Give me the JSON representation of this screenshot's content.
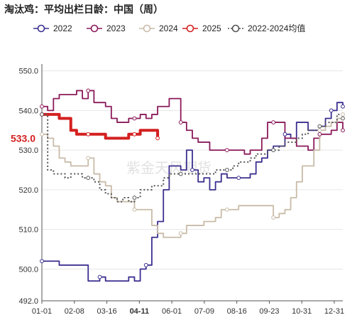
{
  "chart_data": {
    "type": "line",
    "title": "淘汰鸡：平均出栏日龄：中国（周）",
    "xlabel": "",
    "ylabel": "",
    "ylim": [
      492,
      551
    ],
    "yticks": [
      492.0,
      500.0,
      510.0,
      520.0,
      530.0,
      540.0,
      550.0
    ],
    "xticks": [
      "01-01",
      "02-08",
      "03-16",
      "04-11",
      "06-01",
      "07-09",
      "08-16",
      "09-23",
      "10-31",
      "12-31"
    ],
    "highlight_xtick": "04-11",
    "last_value_label": "533.0",
    "watermark": "紫金天风期货",
    "legend_position": "top",
    "grid": "horizontal",
    "series": [
      {
        "name": "2022",
        "color": "#3b2f8f",
        "style": "solid",
        "values": [
          [
            1,
            502
          ],
          [
            3,
            502
          ],
          [
            4,
            501
          ],
          [
            6,
            501
          ],
          [
            7,
            501
          ],
          [
            8,
            501
          ],
          [
            9,
            497
          ],
          [
            10,
            497
          ],
          [
            11,
            498
          ],
          [
            12,
            497
          ],
          [
            13,
            497
          ],
          [
            14,
            497
          ],
          [
            15,
            497
          ],
          [
            16,
            498
          ],
          [
            17,
            497
          ],
          [
            18,
            500
          ],
          [
            19,
            501
          ],
          [
            20,
            508
          ],
          [
            21,
            512
          ],
          [
            22,
            520
          ],
          [
            23,
            526
          ],
          [
            24,
            526
          ],
          [
            25,
            525
          ],
          [
            26,
            530
          ],
          [
            27,
            525
          ],
          [
            28,
            522
          ],
          [
            29,
            523
          ],
          [
            30,
            520
          ],
          [
            31,
            522
          ],
          [
            32,
            524
          ],
          [
            33,
            523
          ],
          [
            34,
            523
          ],
          [
            35,
            523
          ],
          [
            36,
            523
          ],
          [
            37,
            524
          ],
          [
            38,
            527
          ],
          [
            39,
            528
          ],
          [
            40,
            530
          ],
          [
            41,
            531
          ],
          [
            42,
            531
          ],
          [
            43,
            534
          ],
          [
            44,
            533
          ],
          [
            45,
            537
          ],
          [
            46,
            537
          ],
          [
            47,
            535
          ],
          [
            48,
            535
          ],
          [
            49,
            536
          ],
          [
            50,
            538
          ],
          [
            51,
            540
          ],
          [
            52,
            542
          ],
          [
            53,
            541
          ]
        ]
      },
      {
        "name": "2023",
        "color": "#8b1a5a",
        "style": "solid",
        "values": [
          [
            1,
            541
          ],
          [
            2,
            540
          ],
          [
            3,
            543
          ],
          [
            4,
            544
          ],
          [
            5,
            544
          ],
          [
            6,
            544
          ],
          [
            7,
            545
          ],
          [
            8,
            543
          ],
          [
            9,
            545
          ],
          [
            10,
            542
          ],
          [
            11,
            542
          ],
          [
            12,
            541
          ],
          [
            13,
            538
          ],
          [
            14,
            537
          ],
          [
            15,
            537
          ],
          [
            16,
            538
          ],
          [
            17,
            538
          ],
          [
            18,
            539
          ],
          [
            19,
            538
          ],
          [
            20,
            539
          ],
          [
            21,
            541
          ],
          [
            22,
            541
          ],
          [
            23,
            543
          ],
          [
            24,
            543
          ],
          [
            25,
            537
          ],
          [
            26,
            535
          ],
          [
            27,
            533
          ],
          [
            28,
            532
          ],
          [
            29,
            532
          ],
          [
            30,
            530
          ],
          [
            31,
            530
          ],
          [
            32,
            530
          ],
          [
            33,
            530
          ],
          [
            34,
            530
          ],
          [
            35,
            530
          ],
          [
            36,
            529
          ],
          [
            37,
            530
          ],
          [
            38,
            530
          ],
          [
            39,
            533
          ],
          [
            40,
            537
          ],
          [
            41,
            537
          ],
          [
            42,
            537
          ],
          [
            43,
            533
          ],
          [
            44,
            533
          ],
          [
            45,
            531
          ],
          [
            46,
            531
          ],
          [
            47,
            530
          ],
          [
            48,
            533
          ],
          [
            49,
            534
          ],
          [
            50,
            534
          ],
          [
            51,
            535
          ],
          [
            52,
            537
          ],
          [
            53,
            535
          ]
        ]
      },
      {
        "name": "2024",
        "color": "#c9bba8",
        "style": "solid",
        "values": [
          [
            1,
            534
          ],
          [
            2,
            533
          ],
          [
            3,
            531
          ],
          [
            4,
            528
          ],
          [
            5,
            527
          ],
          [
            6,
            526
          ],
          [
            7,
            526
          ],
          [
            8,
            526
          ],
          [
            9,
            528
          ],
          [
            10,
            524
          ],
          [
            11,
            522
          ],
          [
            12,
            521
          ],
          [
            13,
            518
          ],
          [
            14,
            517
          ],
          [
            15,
            517
          ],
          [
            16,
            517
          ],
          [
            17,
            515
          ],
          [
            18,
            515
          ],
          [
            19,
            515
          ],
          [
            20,
            511
          ],
          [
            21,
            509
          ],
          [
            22,
            508
          ],
          [
            23,
            508
          ],
          [
            24,
            508
          ],
          [
            25,
            509
          ],
          [
            26,
            511
          ],
          [
            27,
            511
          ],
          [
            28,
            511
          ],
          [
            29,
            512
          ],
          [
            30,
            512
          ],
          [
            31,
            513
          ],
          [
            32,
            515
          ],
          [
            33,
            515
          ],
          [
            34,
            515
          ],
          [
            35,
            516
          ],
          [
            36,
            516
          ],
          [
            37,
            516
          ],
          [
            38,
            516
          ],
          [
            39,
            516
          ],
          [
            40,
            516
          ],
          [
            41,
            513
          ],
          [
            42,
            514
          ],
          [
            43,
            515
          ],
          [
            44,
            518
          ],
          [
            45,
            522
          ],
          [
            46,
            526
          ],
          [
            47,
            526
          ],
          [
            48,
            530
          ],
          [
            49,
            535
          ],
          [
            50,
            536
          ],
          [
            51,
            537
          ],
          [
            52,
            538
          ],
          [
            53,
            539
          ]
        ]
      },
      {
        "name": "2025",
        "color": "#d42020",
        "style": "solid",
        "values": [
          [
            1,
            539
          ],
          [
            2,
            539
          ],
          [
            3,
            539
          ],
          [
            4,
            538
          ],
          [
            5,
            538
          ],
          [
            6,
            535
          ],
          [
            7,
            534
          ],
          [
            8,
            534
          ],
          [
            9,
            534
          ],
          [
            10,
            534
          ],
          [
            11,
            534
          ],
          [
            12,
            533
          ],
          [
            13,
            533
          ],
          [
            14,
            533
          ],
          [
            15,
            533
          ],
          [
            16,
            534
          ],
          [
            17,
            534
          ],
          [
            18,
            535
          ],
          [
            19,
            535
          ],
          [
            20,
            535
          ],
          [
            21,
            533
          ]
        ]
      },
      {
        "name": "2022-2024均值",
        "color": "#555555",
        "style": "dotted",
        "values": [
          [
            1,
            539
          ],
          [
            2,
            525
          ],
          [
            3,
            524
          ],
          [
            4,
            524
          ],
          [
            5,
            523
          ],
          [
            6,
            524
          ],
          [
            7,
            524
          ],
          [
            8,
            523
          ],
          [
            9,
            523
          ],
          [
            10,
            522
          ],
          [
            11,
            520
          ],
          [
            12,
            519
          ],
          [
            13,
            518
          ],
          [
            14,
            517
          ],
          [
            15,
            518
          ],
          [
            16,
            517
          ],
          [
            17,
            518
          ],
          [
            18,
            520
          ],
          [
            19,
            520
          ],
          [
            20,
            521
          ],
          [
            21,
            521
          ],
          [
            22,
            523
          ],
          [
            23,
            524
          ],
          [
            24,
            524
          ],
          [
            25,
            524
          ],
          [
            26,
            524
          ],
          [
            27,
            524
          ],
          [
            28,
            524
          ],
          [
            29,
            524
          ],
          [
            30,
            524
          ],
          [
            31,
            525
          ],
          [
            32,
            525
          ],
          [
            33,
            525
          ],
          [
            34,
            526
          ],
          [
            35,
            527
          ],
          [
            36,
            527
          ],
          [
            37,
            528
          ],
          [
            38,
            529
          ],
          [
            39,
            529
          ],
          [
            40,
            530
          ],
          [
            41,
            530
          ],
          [
            42,
            531
          ],
          [
            43,
            532
          ],
          [
            44,
            532
          ],
          [
            45,
            533
          ],
          [
            46,
            534
          ],
          [
            47,
            535
          ],
          [
            48,
            535
          ],
          [
            49,
            536
          ],
          [
            50,
            537
          ],
          [
            51,
            537
          ],
          [
            52,
            539
          ],
          [
            53,
            538
          ]
        ]
      }
    ]
  }
}
